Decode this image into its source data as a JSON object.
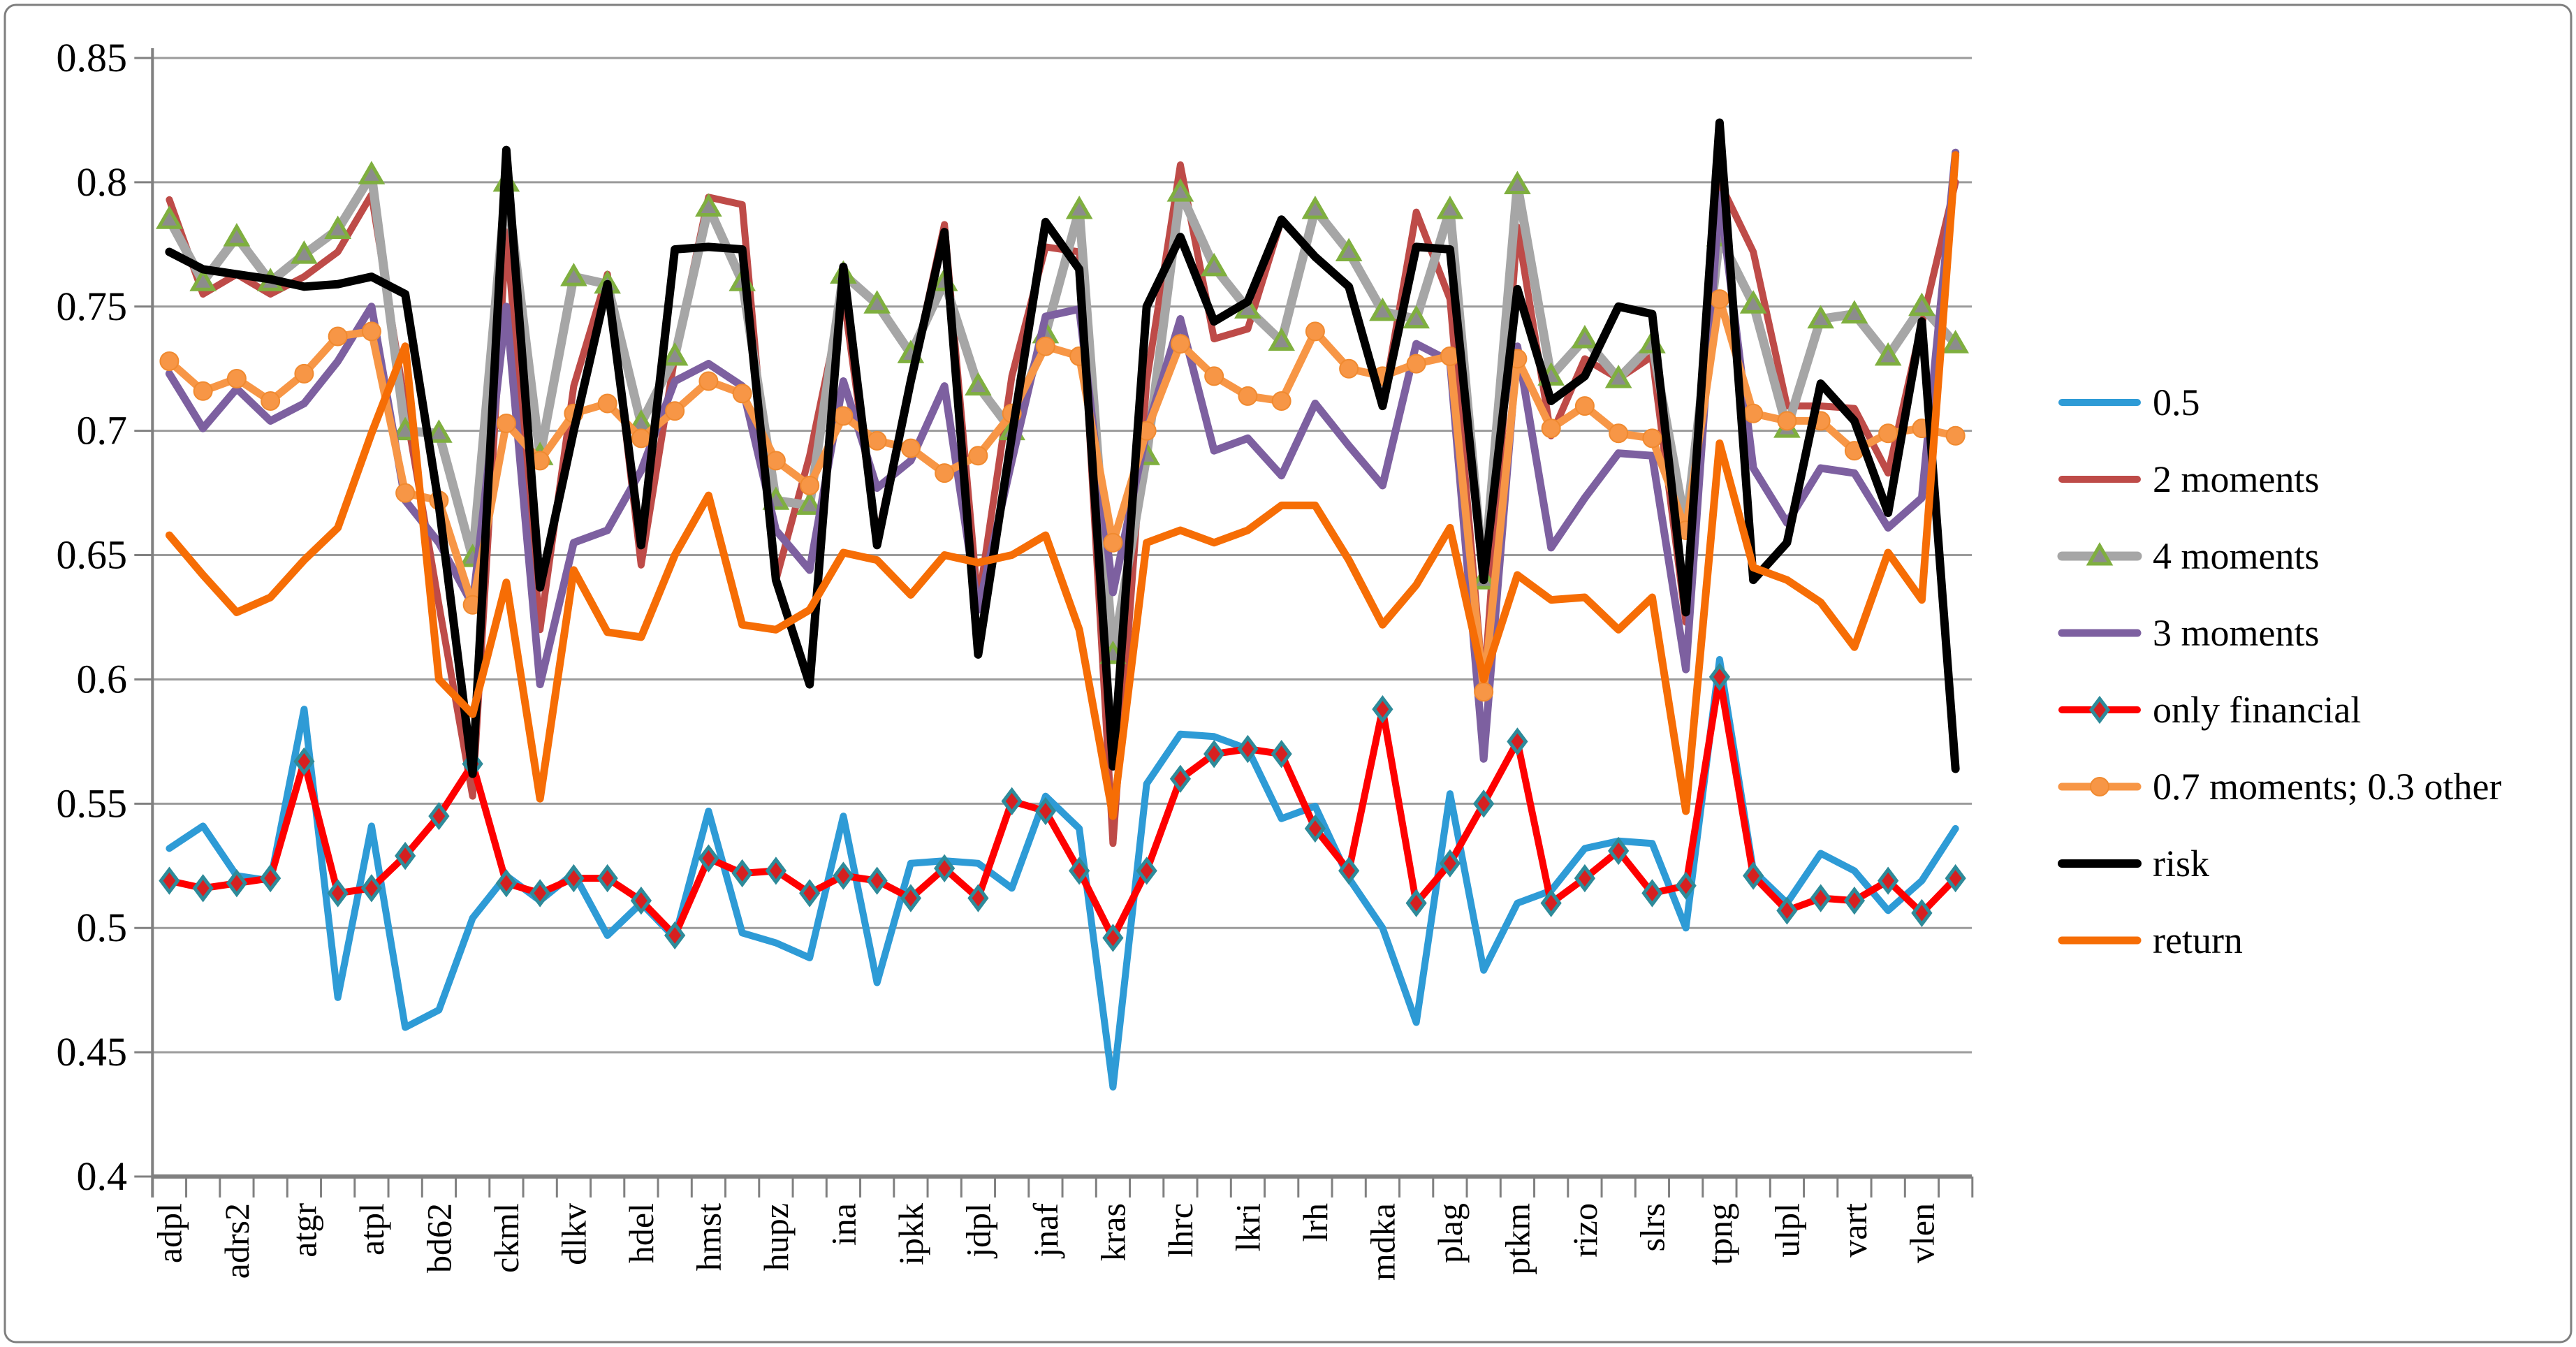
{
  "chart_data": {
    "type": "line",
    "title": "",
    "y_axis": {
      "min": 0.4,
      "max": 0.85,
      "tick_step": 0.05,
      "tick_labels": [
        "0.85",
        "0.8",
        "0.75",
        "0.7",
        "0.65",
        "0.6",
        "0.55",
        "0.5",
        "0.45",
        "0.4"
      ],
      "grid": true
    },
    "x_axis": {
      "categories": [
        "adpl",
        "adrs2",
        "atgr",
        "atpl",
        "bd62",
        "ckml",
        "dlkv",
        "hdel",
        "hmst",
        "hupz",
        "ina",
        "ipkk",
        "jdpl",
        "jnaf",
        "kras",
        "lhrc",
        "lkri",
        "lrh",
        "mdka",
        "plag",
        "ptkm",
        "rizo",
        "slrs",
        "tpng",
        "ulpl",
        "vart",
        "vlen"
      ],
      "points_per_label": 2,
      "point_count": 54
    },
    "legend_position": "right",
    "series": [
      {
        "name": "0.5",
        "color": "#2E9BD6",
        "marker": "none",
        "values": [
          0.532,
          0.541,
          0.521,
          0.519,
          0.588,
          0.472,
          0.541,
          0.46,
          0.467,
          0.504,
          0.521,
          0.511,
          0.522,
          0.497,
          0.51,
          0.496,
          0.547,
          0.498,
          0.494,
          0.488,
          0.545,
          0.478,
          0.526,
          0.527,
          0.526,
          0.516,
          0.553,
          0.54,
          0.436,
          0.558,
          0.578,
          0.577,
          0.572,
          0.544,
          0.549,
          0.52,
          0.5,
          0.462,
          0.554,
          0.483,
          0.51,
          0.515,
          0.532,
          0.535,
          0.534,
          0.5,
          0.608,
          0.523,
          0.51,
          0.53,
          0.523,
          0.507,
          0.519,
          0.54
        ]
      },
      {
        "name": "2 moments",
        "color": "#BE4B48",
        "marker": "none",
        "values": [
          0.793,
          0.755,
          0.763,
          0.755,
          0.762,
          0.772,
          0.795,
          0.71,
          0.63,
          0.553,
          0.78,
          0.62,
          0.718,
          0.763,
          0.646,
          0.73,
          0.794,
          0.791,
          0.64,
          0.69,
          0.755,
          0.656,
          0.72,
          0.783,
          0.63,
          0.722,
          0.774,
          0.772,
          0.534,
          0.72,
          0.807,
          0.737,
          0.741,
          0.785,
          0.77,
          0.758,
          0.71,
          0.788,
          0.753,
          0.595,
          0.782,
          0.698,
          0.729,
          0.721,
          0.73,
          0.623,
          0.8,
          0.772,
          0.71,
          0.71,
          0.709,
          0.683,
          0.743,
          0.8
        ]
      },
      {
        "name": "4 moments",
        "color": "#A6A6A6",
        "marker": "triangle",
        "marker_fill": "#8C8C8C",
        "marker_stroke": "#7FAF3F",
        "values": [
          0.785,
          0.76,
          0.778,
          0.76,
          0.771,
          0.781,
          0.803,
          0.7,
          0.699,
          0.649,
          0.8,
          0.69,
          0.762,
          0.759,
          0.703,
          0.73,
          0.79,
          0.76,
          0.672,
          0.67,
          0.763,
          0.751,
          0.731,
          0.76,
          0.718,
          0.7,
          0.739,
          0.789,
          0.61,
          0.69,
          0.796,
          0.766,
          0.749,
          0.736,
          0.789,
          0.772,
          0.748,
          0.745,
          0.789,
          0.64,
          0.799,
          0.722,
          0.737,
          0.721,
          0.735,
          0.661,
          0.778,
          0.751,
          0.701,
          0.745,
          0.747,
          0.73,
          0.75,
          0.735
        ]
      },
      {
        "name": "3 moments",
        "color": "#7D60A0",
        "marker": "none",
        "values": [
          0.723,
          0.701,
          0.717,
          0.704,
          0.711,
          0.728,
          0.75,
          0.672,
          0.655,
          0.63,
          0.75,
          0.598,
          0.655,
          0.66,
          0.684,
          0.72,
          0.727,
          0.718,
          0.66,
          0.644,
          0.72,
          0.677,
          0.688,
          0.718,
          0.628,
          0.688,
          0.746,
          0.749,
          0.635,
          0.7,
          0.745,
          0.692,
          0.697,
          0.682,
          0.711,
          0.694,
          0.678,
          0.735,
          0.728,
          0.568,
          0.734,
          0.653,
          0.673,
          0.691,
          0.69,
          0.604,
          0.795,
          0.685,
          0.663,
          0.685,
          0.683,
          0.661,
          0.673,
          0.812
        ]
      },
      {
        "name": "only financial",
        "color": "#FE0000",
        "marker": "diamond",
        "marker_fill": "#D62020",
        "marker_stroke": "#2E8B9A",
        "values": [
          0.519,
          0.516,
          0.518,
          0.52,
          0.567,
          0.514,
          0.516,
          0.529,
          0.545,
          0.566,
          0.518,
          0.514,
          0.52,
          0.52,
          0.511,
          0.497,
          0.528,
          0.522,
          0.523,
          0.514,
          0.521,
          0.519,
          0.512,
          0.524,
          0.512,
          0.551,
          0.547,
          0.523,
          0.496,
          0.523,
          0.56,
          0.57,
          0.572,
          0.57,
          0.54,
          0.523,
          0.588,
          0.51,
          0.526,
          0.55,
          0.575,
          0.51,
          0.52,
          0.531,
          0.514,
          0.517,
          0.601,
          0.521,
          0.507,
          0.512,
          0.511,
          0.519,
          0.506,
          0.52
        ]
      },
      {
        "name": "0.7 moments; 0.3 other",
        "color": "#F79646",
        "marker": "circle",
        "marker_fill": "#F79646",
        "marker_stroke": "#F08A30",
        "values": [
          0.728,
          0.716,
          0.721,
          0.712,
          0.723,
          0.738,
          0.74,
          0.675,
          0.672,
          0.63,
          0.703,
          0.688,
          0.707,
          0.711,
          0.697,
          0.708,
          0.72,
          0.715,
          0.688,
          0.678,
          0.706,
          0.696,
          0.693,
          0.683,
          0.69,
          0.707,
          0.734,
          0.73,
          0.655,
          0.7,
          0.735,
          0.722,
          0.714,
          0.712,
          0.74,
          0.725,
          0.722,
          0.727,
          0.73,
          0.595,
          0.729,
          0.701,
          0.71,
          0.699,
          0.697,
          0.66,
          0.753,
          0.707,
          0.704,
          0.704,
          0.692,
          0.699,
          0.701,
          0.698
        ]
      },
      {
        "name": "risk",
        "color": "#000000",
        "marker": "none",
        "values": [
          0.772,
          0.765,
          0.763,
          0.761,
          0.758,
          0.759,
          0.762,
          0.755,
          0.67,
          0.562,
          0.813,
          0.637,
          0.7,
          0.759,
          0.654,
          0.773,
          0.774,
          0.773,
          0.64,
          0.598,
          0.766,
          0.654,
          0.72,
          0.78,
          0.61,
          0.698,
          0.784,
          0.765,
          0.565,
          0.75,
          0.778,
          0.744,
          0.752,
          0.785,
          0.77,
          0.758,
          0.71,
          0.774,
          0.773,
          0.64,
          0.757,
          0.712,
          0.722,
          0.75,
          0.747,
          0.627,
          0.824,
          0.64,
          0.655,
          0.719,
          0.704,
          0.667,
          0.744,
          0.564
        ]
      },
      {
        "name": "return",
        "color": "#F66D05",
        "marker": "none",
        "values": [
          0.658,
          0.642,
          0.627,
          0.633,
          0.648,
          0.661,
          0.699,
          0.734,
          0.6,
          0.586,
          0.639,
          0.552,
          0.644,
          0.619,
          0.617,
          0.65,
          0.674,
          0.622,
          0.62,
          0.628,
          0.651,
          0.648,
          0.634,
          0.65,
          0.647,
          0.65,
          0.658,
          0.62,
          0.545,
          0.655,
          0.66,
          0.655,
          0.66,
          0.67,
          0.67,
          0.648,
          0.622,
          0.638,
          0.661,
          0.6,
          0.642,
          0.632,
          0.633,
          0.62,
          0.633,
          0.547,
          0.695,
          0.645,
          0.64,
          0.631,
          0.613,
          0.651,
          0.632,
          0.811
        ]
      }
    ]
  }
}
